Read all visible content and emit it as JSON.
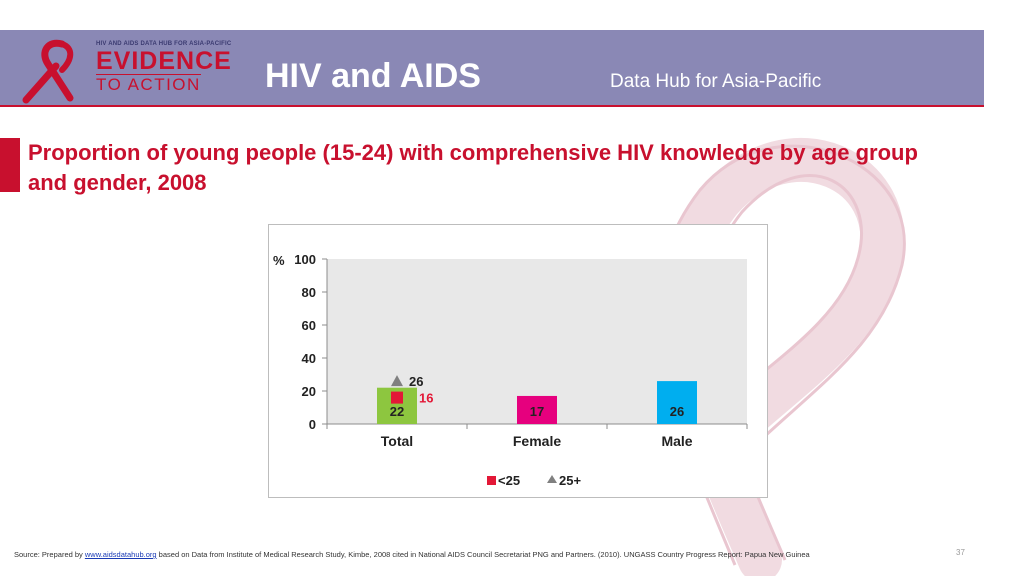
{
  "header": {
    "logo_tagline": "HIV AND AIDS DATA HUB FOR ASIA-PACIFIC",
    "logo_main": "EVIDENCE",
    "logo_sub": "TO ACTION",
    "title": "HIV and AIDS",
    "subtitle": "Data Hub for Asia-Pacific"
  },
  "slide": {
    "title": "Proportion of young people (15-24) with comprehensive HIV knowledge by age group and gender, 2008"
  },
  "chart_data": {
    "type": "bar",
    "title": "",
    "ylabel": "%",
    "xlabel": "",
    "ylim": [
      0,
      100
    ],
    "yticks": [
      0,
      20,
      40,
      60,
      80,
      100
    ],
    "categories": [
      "Total",
      "Female",
      "Male"
    ],
    "values": [
      22,
      17,
      26
    ],
    "bar_colors": [
      "#8dc63f",
      "#e6007e",
      "#00aeef"
    ],
    "markers": [
      {
        "name": "<25",
        "category": "Total",
        "value": 16,
        "shape": "square",
        "color": "#e31837"
      },
      {
        "name": "25+",
        "category": "Total",
        "value": 26,
        "shape": "triangle",
        "color": "#808080"
      }
    ],
    "legend": [
      "<25",
      "25+"
    ],
    "legend_position": "bottom",
    "grid": false,
    "plot_background": "#e8e8e8"
  },
  "footer": {
    "source_prefix": "Source: Prepared by ",
    "source_link": "www.aidsdatahub.org",
    "source_text": "  based on Data from Institute of Medical Research Study, Kimbe, 2008 cited in National AIDS Council Secretariat PNG and Partners. (2010). UNGASS Country Progress Report: Papua New Guinea",
    "page_number": "37"
  }
}
